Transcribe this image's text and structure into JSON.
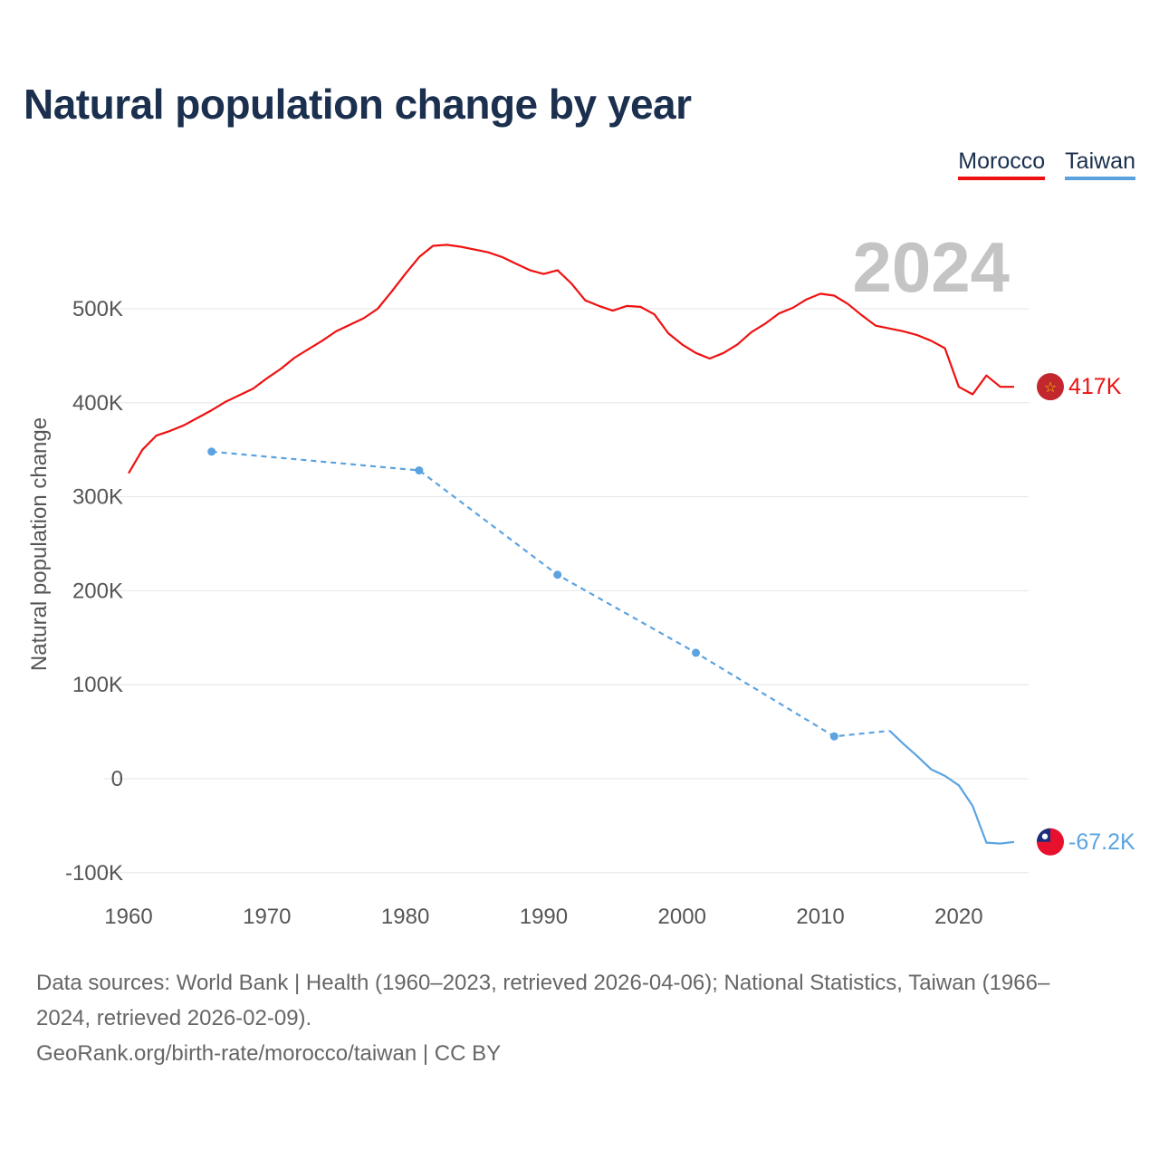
{
  "colors": {
    "morocco": "#ee1111",
    "taiwan": "#5ba3e0",
    "title": "#1b2f4e",
    "grid": "#e6e6e6"
  },
  "header": {
    "title": "Natural population change by year"
  },
  "legend": {
    "morocco_label": "Morocco",
    "taiwan_label": "Taiwan"
  },
  "chart_data": {
    "type": "line",
    "title": "Natural population change by year",
    "xlabel": "",
    "ylabel": "Natural population change",
    "xlim": [
      1960,
      2024
    ],
    "ylim": [
      -100000,
      600000
    ],
    "x_ticks": [
      1960,
      1970,
      1980,
      1990,
      2000,
      2010,
      2020
    ],
    "y_ticks": [
      {
        "value": -100000,
        "label": "-100K"
      },
      {
        "value": 0,
        "label": "0"
      },
      {
        "value": 100000,
        "label": "100K"
      },
      {
        "value": 200000,
        "label": "200K"
      },
      {
        "value": 300000,
        "label": "300K"
      },
      {
        "value": 400000,
        "label": "400K"
      },
      {
        "value": 500000,
        "label": "500K"
      }
    ],
    "year_overlay": "2024",
    "series": [
      {
        "name": "Morocco",
        "color": "#ee1111",
        "end_label": "417K",
        "flag": "morocco-flag",
        "x": [
          1960,
          1961,
          1962,
          1963,
          1964,
          1965,
          1966,
          1967,
          1968,
          1969,
          1970,
          1971,
          1972,
          1973,
          1974,
          1975,
          1976,
          1977,
          1978,
          1979,
          1980,
          1981,
          1982,
          1983,
          1984,
          1985,
          1986,
          1987,
          1988,
          1989,
          1990,
          1991,
          1992,
          1993,
          1994,
          1995,
          1996,
          1997,
          1998,
          1999,
          2000,
          2001,
          2002,
          2003,
          2004,
          2005,
          2006,
          2007,
          2008,
          2009,
          2010,
          2011,
          2012,
          2013,
          2014,
          2015,
          2016,
          2017,
          2018,
          2019,
          2020,
          2021,
          2022,
          2023,
          2024
        ],
        "values": [
          325000,
          350000,
          365000,
          370000,
          376000,
          384000,
          392000,
          401000,
          408000,
          415000,
          426000,
          436000,
          448000,
          457000,
          466000,
          476000,
          483000,
          490000,
          500000,
          518000,
          537000,
          555000,
          567000,
          568000,
          566000,
          563000,
          560000,
          555000,
          548000,
          541000,
          537000,
          541000,
          527000,
          509000,
          503000,
          498000,
          503000,
          502000,
          494000,
          474000,
          462000,
          453000,
          447000,
          453000,
          462000,
          475000,
          484000,
          495000,
          501000,
          510000,
          516000,
          514000,
          505000,
          493000,
          482000,
          479000,
          476000,
          472000,
          466000,
          458000,
          417000,
          409000,
          429000,
          417000,
          417000
        ]
      },
      {
        "name": "Taiwan",
        "color": "#5ba3e0",
        "end_label": "-67.2K",
        "flag": "taiwan-flag",
        "dashed": {
          "x": [
            1966,
            1981,
            1991,
            2001,
            2011,
            2015
          ],
          "values": [
            348000,
            328000,
            217000,
            134000,
            45000,
            51000
          ]
        },
        "dots": {
          "x": [
            1966,
            1981,
            1991,
            2001,
            2011
          ],
          "values": [
            348000,
            328000,
            217000,
            134000,
            45000
          ]
        },
        "solid": {
          "x": [
            2015,
            2016,
            2017,
            2018,
            2019,
            2020,
            2021,
            2022,
            2023,
            2024
          ],
          "values": [
            51000,
            37000,
            24000,
            10000,
            3000,
            -7000,
            -29000,
            -68000,
            -69000,
            -67200
          ]
        }
      }
    ]
  },
  "footer": {
    "sources_line1": "Data sources: World Bank | Health (1960–2023, retrieved 2026-04-06); National Statistics, Taiwan (1966–",
    "sources_line2": "2024, retrieved 2026-02-09).",
    "credit": "GeoRank.org/birth-rate/morocco/taiwan | CC BY"
  }
}
